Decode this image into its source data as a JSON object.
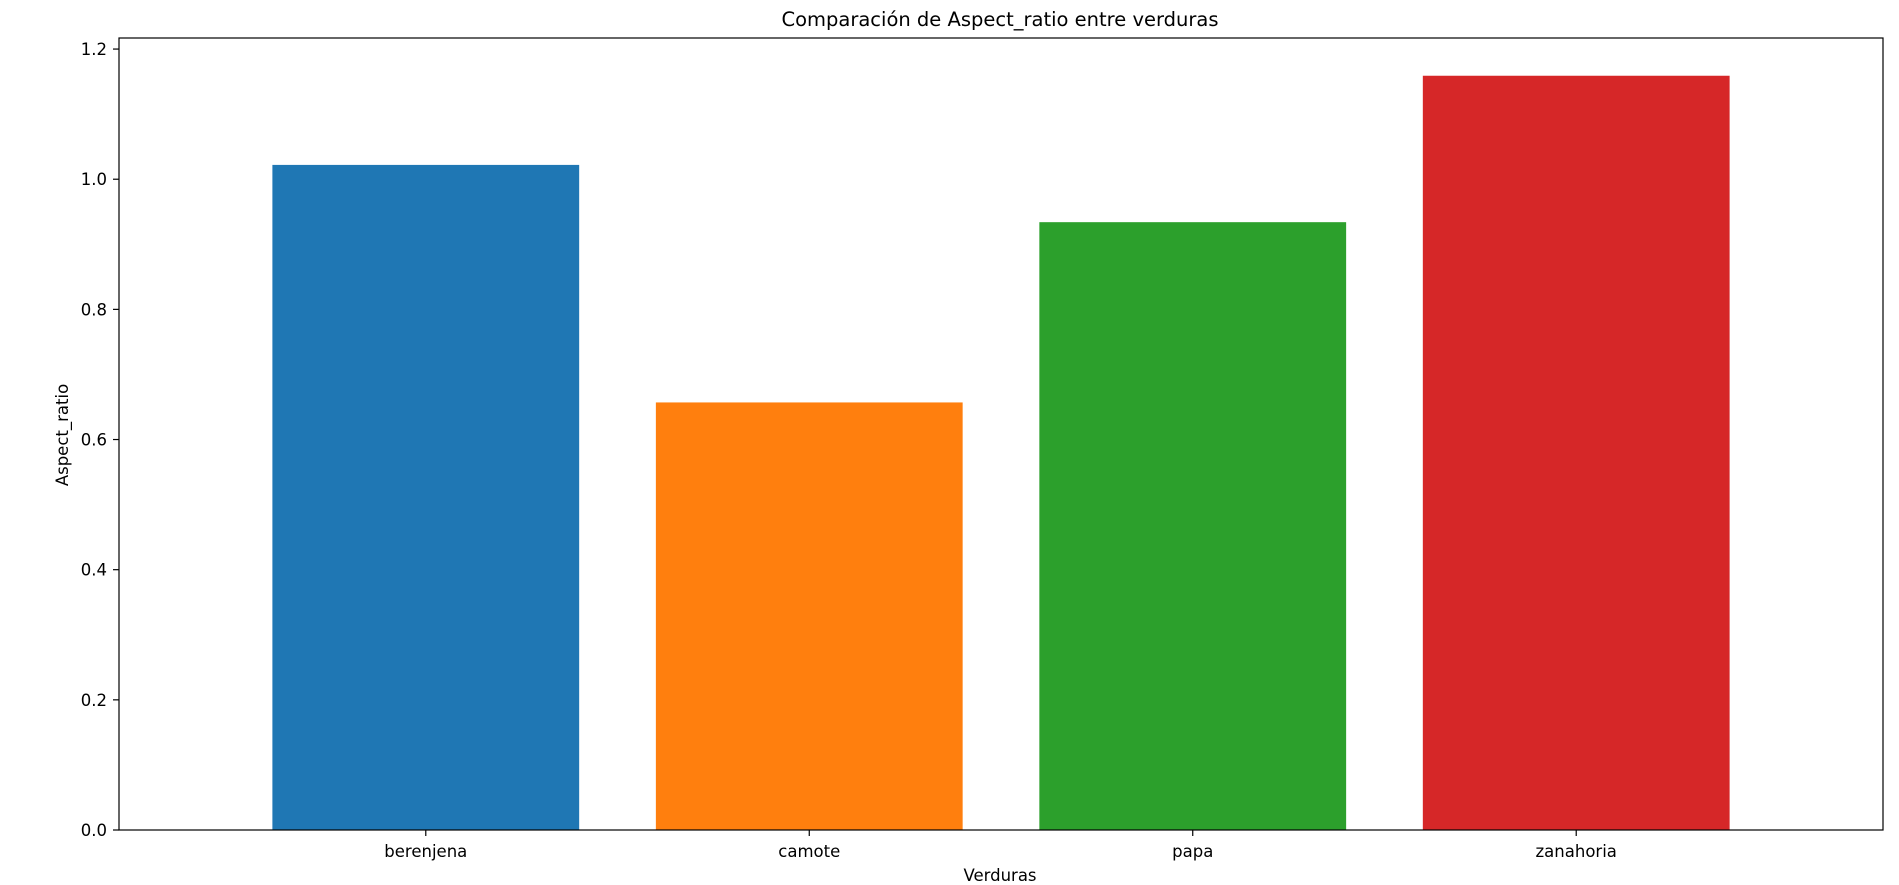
{
  "chart_data": {
    "type": "bar",
    "title": "Comparación de Aspect_ratio entre verduras",
    "xlabel": "Verduras",
    "ylabel": "Aspect_ratio",
    "categories": [
      "berenjena",
      "camote",
      "papa",
      "zanahoria"
    ],
    "values": [
      1.022,
      0.657,
      0.934,
      1.159
    ],
    "colors": [
      "#1f77b4",
      "#ff7f0e",
      "#2ca02c",
      "#d62728"
    ],
    "ylim": [
      0,
      1.217
    ],
    "yticks": [
      "0.0",
      "0.2",
      "0.4",
      "0.6",
      "0.8",
      "1.0",
      "1.2"
    ],
    "grid": false,
    "legend": false
  }
}
